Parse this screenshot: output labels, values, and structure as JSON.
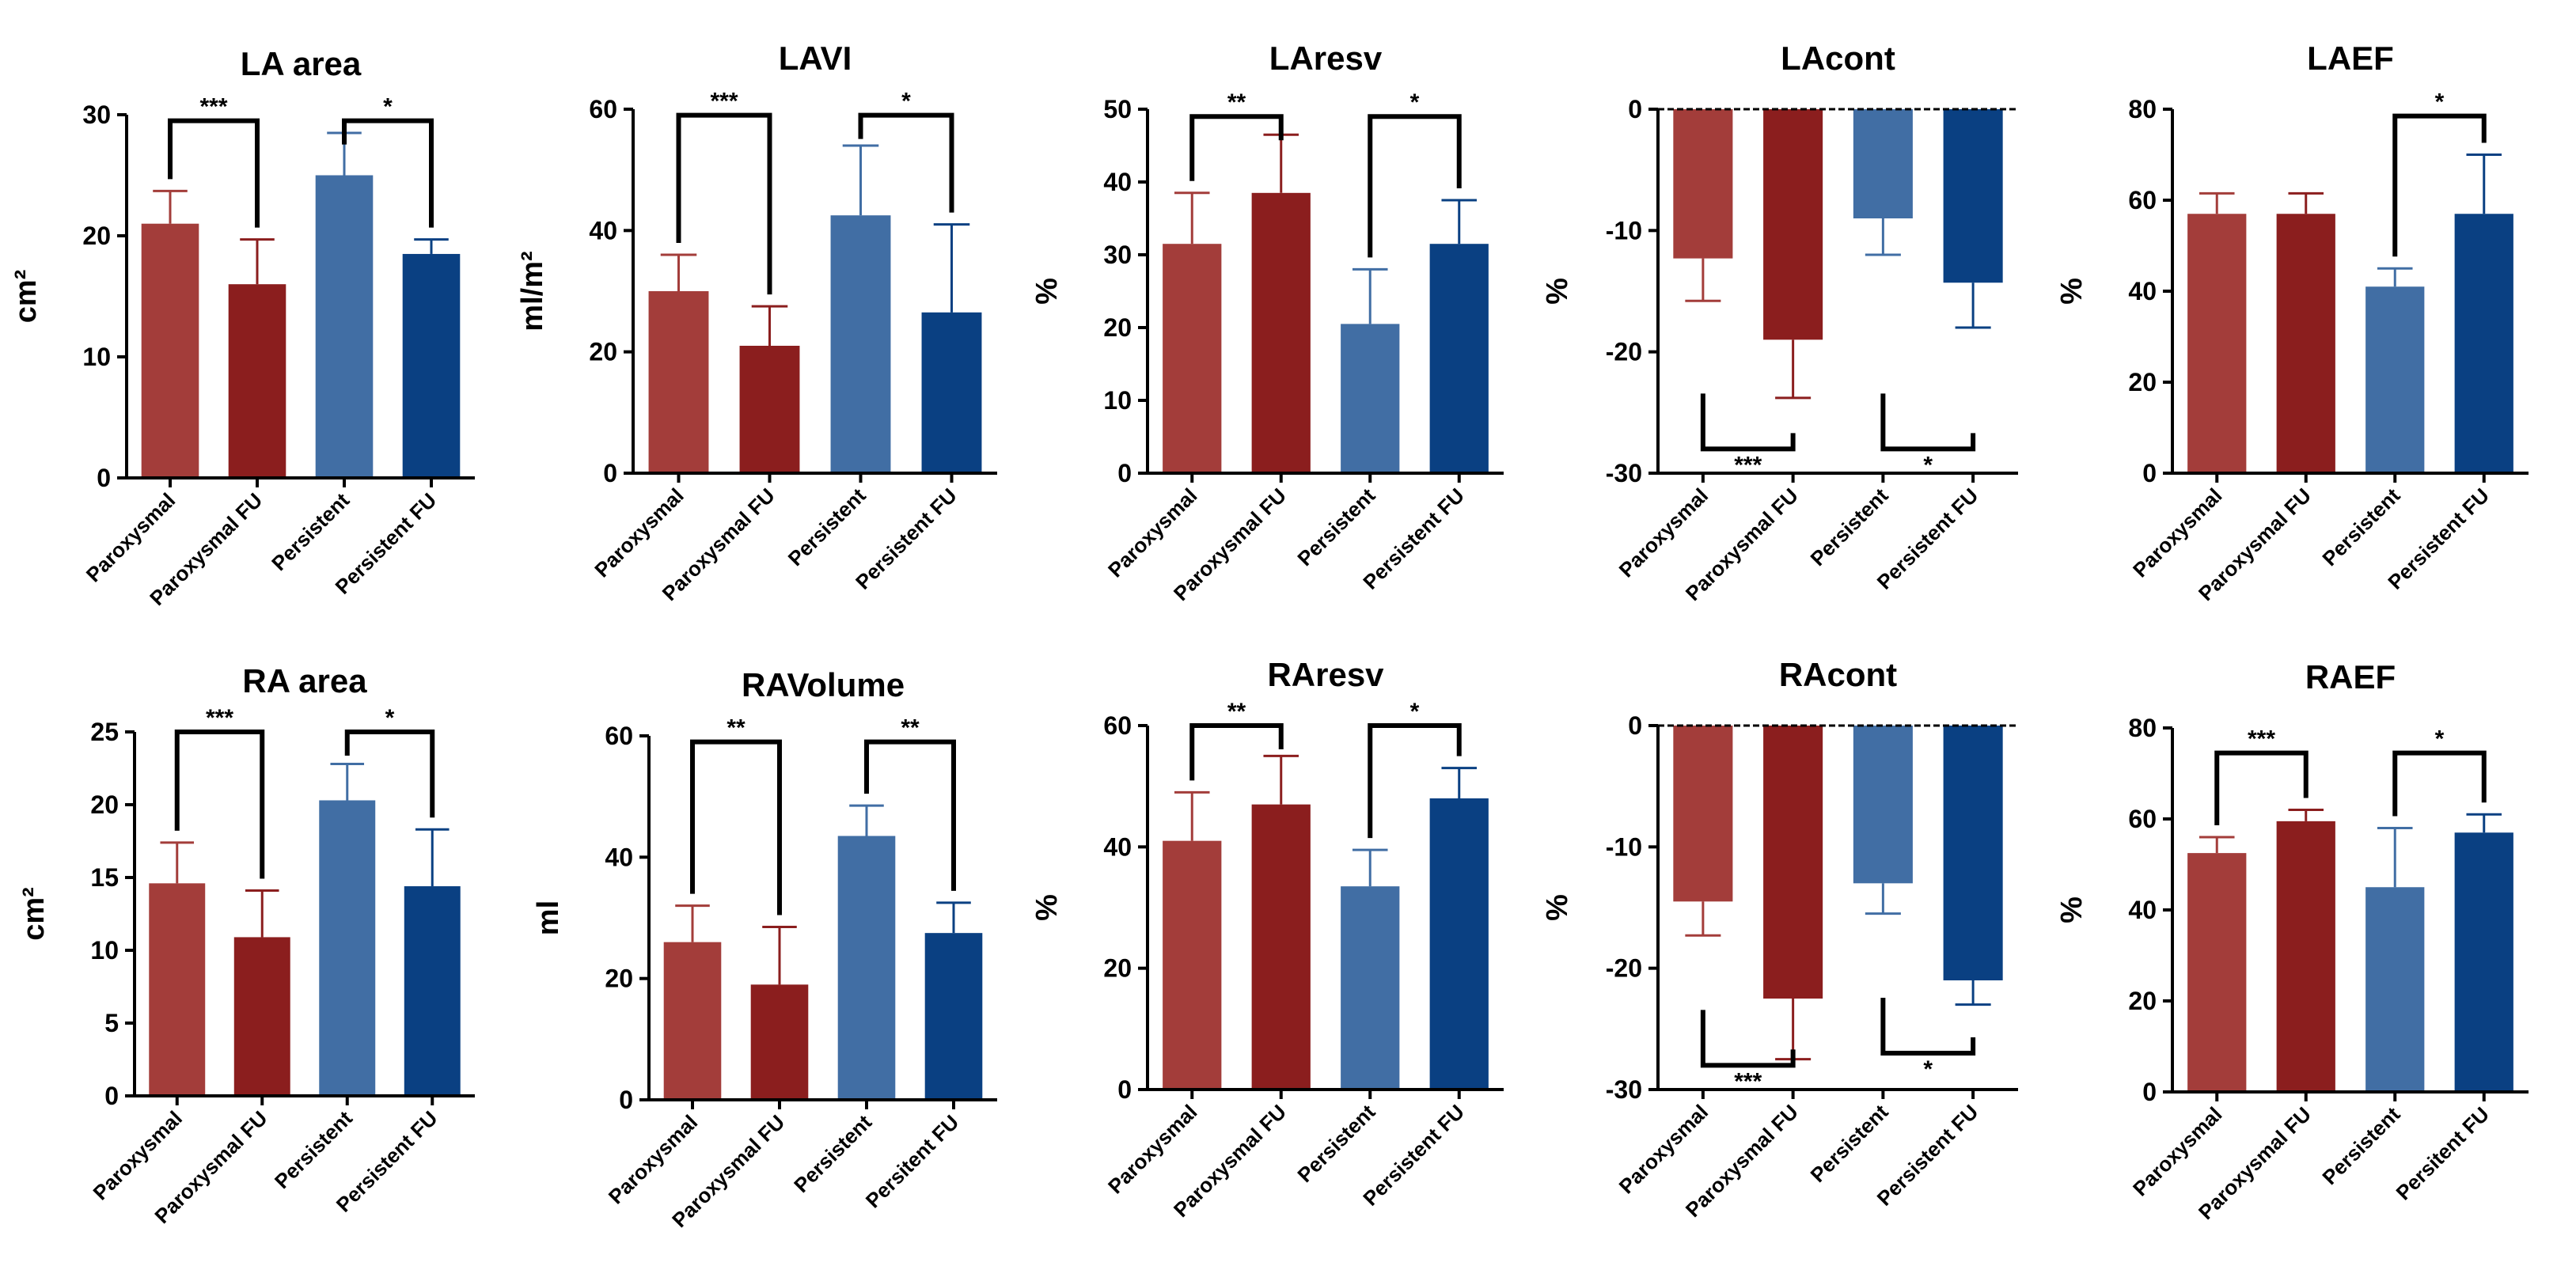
{
  "figure": {
    "colors": {
      "Paroxysmal": "#a33d3a",
      "Paroxysmal FU": "#8b1e1e",
      "Persistent": "#416ea4",
      "Persistent FU": "#0a4082",
      "bracket": "#000000",
      "axis": "#000000"
    }
  },
  "chart_data": [
    {
      "type": "bar",
      "title": "LA area",
      "ylabel": "cm²",
      "ylim": [
        0,
        30
      ],
      "yticks": [
        0,
        10,
        20,
        30
      ],
      "categories": [
        "Paroxysmal",
        "Paroxysmal FU",
        "Persistent",
        "Persistent FU"
      ],
      "values": [
        21,
        16,
        25,
        18.5
      ],
      "errors": [
        2.7,
        3.7,
        3.5,
        1.2
      ],
      "significance": [
        {
          "from": 0,
          "to": 1,
          "label": "***",
          "side": "top",
          "level": 29.5
        },
        {
          "from": 2,
          "to": 3,
          "label": "*",
          "side": "top",
          "level": 29.5
        }
      ]
    },
    {
      "type": "bar",
      "title": "LAVI",
      "ylabel": "ml/m²",
      "ylim": [
        0,
        60
      ],
      "yticks": [
        0,
        20,
        40,
        60
      ],
      "categories": [
        "Paroxysmal",
        "Paroxysmal FU",
        "Persistent",
        "Persistent FU"
      ],
      "values": [
        30,
        21,
        42.5,
        26.5
      ],
      "errors": [
        6,
        6.5,
        11.5,
        14.5
      ],
      "significance": [
        {
          "from": 0,
          "to": 1,
          "label": "***",
          "side": "top",
          "level": 59
        },
        {
          "from": 2,
          "to": 3,
          "label": "*",
          "side": "top",
          "level": 59
        }
      ]
    },
    {
      "type": "bar",
      "title": "LAresv",
      "ylabel": "%",
      "ylim": [
        0,
        50
      ],
      "yticks": [
        0,
        10,
        20,
        30,
        40,
        50
      ],
      "categories": [
        "Paroxysmal",
        "Paroxysmal FU",
        "Persistent",
        "Persistent FU"
      ],
      "values": [
        31.5,
        38.5,
        20.5,
        31.5
      ],
      "errors": [
        7,
        8,
        7.5,
        6
      ],
      "significance": [
        {
          "from": 0,
          "to": 1,
          "label": "**",
          "side": "top",
          "level": 49
        },
        {
          "from": 2,
          "to": 3,
          "label": "*",
          "side": "top",
          "level": 49
        }
      ]
    },
    {
      "type": "bar",
      "title": "LAcont",
      "ylabel": "%",
      "ylim": [
        -30,
        0
      ],
      "yticks": [
        -30,
        -20,
        -10,
        0
      ],
      "categories": [
        "Paroxysmal",
        "Paroxysmal FU",
        "Persistent",
        "Persistent FU"
      ],
      "values": [
        -12.3,
        -19,
        -9,
        -14.3
      ],
      "errors": [
        3.5,
        4.8,
        3,
        3.7
      ],
      "significance": [
        {
          "from": 0,
          "to": 1,
          "label": "***",
          "side": "bottom",
          "level": -28
        },
        {
          "from": 2,
          "to": 3,
          "label": "*",
          "side": "bottom",
          "level": -28
        }
      ]
    },
    {
      "type": "bar",
      "title": "LAEF",
      "ylabel": "%",
      "ylim": [
        0,
        80
      ],
      "yticks": [
        0,
        20,
        40,
        60,
        80
      ],
      "categories": [
        "Paroxysmal",
        "Paroxysmal FU",
        "Persistent",
        "Persistent FU"
      ],
      "values": [
        57,
        57,
        41,
        57
      ],
      "errors": [
        4.5,
        4.5,
        4,
        13
      ],
      "significance": [
        {
          "from": 2,
          "to": 3,
          "label": "*",
          "side": "top",
          "level": 78.5
        }
      ]
    },
    {
      "type": "bar",
      "title": "RA area",
      "ylabel": "cm²",
      "ylim": [
        0,
        25
      ],
      "yticks": [
        0,
        5,
        10,
        15,
        20,
        25
      ],
      "categories": [
        "Paroxysmal",
        "Paroxysmal FU",
        "Persistent",
        "Persistent FU"
      ],
      "values": [
        14.6,
        10.9,
        20.3,
        14.4
      ],
      "errors": [
        2.8,
        3.2,
        2.5,
        3.9
      ],
      "significance": [
        {
          "from": 0,
          "to": 1,
          "label": "***",
          "side": "top",
          "level": 25
        },
        {
          "from": 2,
          "to": 3,
          "label": "*",
          "side": "top",
          "level": 25
        }
      ]
    },
    {
      "type": "bar",
      "title": "RAVolume",
      "ylabel": "ml",
      "ylim": [
        0,
        60
      ],
      "yticks": [
        0,
        20,
        40,
        60
      ],
      "categories": [
        "Paroxysmal",
        "Paroxysmal FU",
        "Persistent",
        "Persitent FU"
      ],
      "values": [
        26,
        19,
        43.5,
        27.5
      ],
      "errors": [
        6,
        9.5,
        5,
        5
      ],
      "significance": [
        {
          "from": 0,
          "to": 1,
          "label": "**",
          "side": "top",
          "level": 59
        },
        {
          "from": 2,
          "to": 3,
          "label": "**",
          "side": "top",
          "level": 59
        }
      ]
    },
    {
      "type": "bar",
      "title": "RAresv",
      "ylabel": "%",
      "ylim": [
        0,
        60
      ],
      "yticks": [
        0,
        20,
        40,
        60
      ],
      "categories": [
        "Paroxysmal",
        "Paroxysmal FU",
        "Persistent",
        "Persistent FU"
      ],
      "values": [
        41,
        47,
        33.5,
        48
      ],
      "errors": [
        8,
        8,
        6,
        5
      ],
      "significance": [
        {
          "from": 0,
          "to": 1,
          "label": "**",
          "side": "top",
          "level": 60
        },
        {
          "from": 2,
          "to": 3,
          "label": "*",
          "side": "top",
          "level": 60
        }
      ]
    },
    {
      "type": "bar",
      "title": "RAcont",
      "ylabel": "%",
      "ylim": [
        -30,
        0
      ],
      "yticks": [
        -30,
        -20,
        -10,
        0
      ],
      "categories": [
        "Paroxysmal",
        "Paroxysmal FU",
        "Persistent",
        "Persistent FU"
      ],
      "values": [
        -14.5,
        -22.5,
        -13,
        -21
      ],
      "errors": [
        2.8,
        5,
        2.5,
        2
      ],
      "significance": [
        {
          "from": 0,
          "to": 1,
          "label": "***",
          "side": "bottom",
          "level": -28
        },
        {
          "from": 2,
          "to": 3,
          "label": "*",
          "side": "bottom",
          "level": -27
        }
      ]
    },
    {
      "type": "bar",
      "title": "RAEF",
      "ylabel": "%",
      "ylim": [
        0,
        80
      ],
      "yticks": [
        0,
        20,
        40,
        60,
        80
      ],
      "categories": [
        "Paroxysmal",
        "Paroxysmal FU",
        "Persistent",
        "Persitent FU"
      ],
      "values": [
        52.5,
        59.5,
        45,
        57
      ],
      "errors": [
        3.5,
        2.5,
        13,
        4
      ],
      "significance": [
        {
          "from": 0,
          "to": 1,
          "label": "***",
          "side": "top",
          "level": 74.5
        },
        {
          "from": 2,
          "to": 3,
          "label": "*",
          "side": "top",
          "level": 74.5
        }
      ]
    }
  ]
}
